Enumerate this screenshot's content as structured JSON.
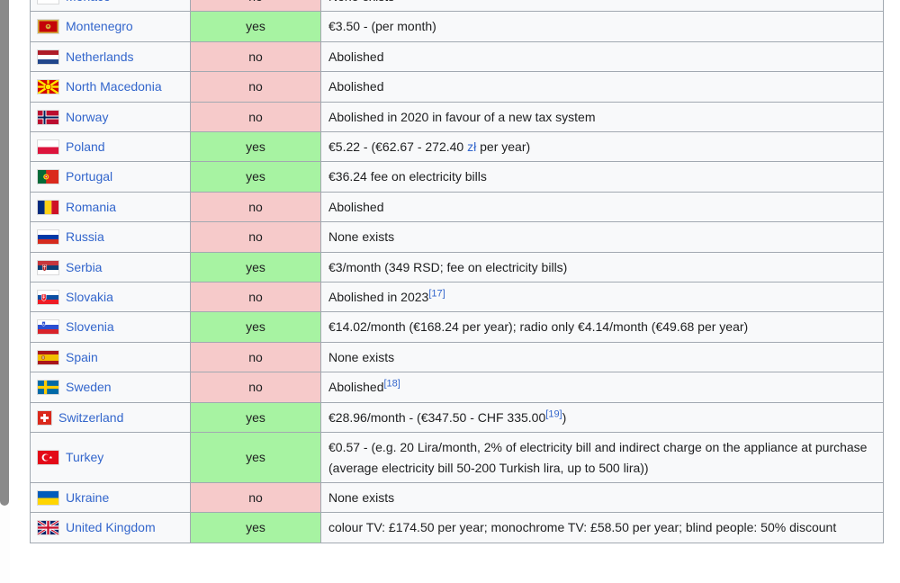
{
  "colors": {
    "link": "#3366cc",
    "text": "#202122",
    "border": "#a2a9b1",
    "cell_bg": "#f8f9fa",
    "yes_bg": "#a7f3a2",
    "no_bg": "#f6caca",
    "scrollbar_thumb": "#8a8a8a"
  },
  "table": {
    "rows": [
      {
        "country": "Monaco",
        "flag": "monaco",
        "status": "no",
        "fee": [
          {
            "type": "text",
            "text": "None exists"
          }
        ]
      },
      {
        "country": "Montenegro",
        "flag": "montenegro",
        "status": "yes",
        "fee": [
          {
            "type": "text",
            "text": "€3.50 - (per month)"
          }
        ]
      },
      {
        "country": "Netherlands",
        "flag": "netherlands",
        "status": "no",
        "fee": [
          {
            "type": "text",
            "text": "Abolished"
          }
        ]
      },
      {
        "country": "North Macedonia",
        "flag": "north-macedonia",
        "status": "no",
        "fee": [
          {
            "type": "text",
            "text": "Abolished"
          }
        ]
      },
      {
        "country": "Norway",
        "flag": "norway",
        "status": "no",
        "fee": [
          {
            "type": "text",
            "text": "Abolished in 2020 in favour of a new tax system"
          }
        ]
      },
      {
        "country": "Poland",
        "flag": "poland",
        "status": "yes",
        "fee": [
          {
            "type": "text",
            "text": "€5.22 - (€62.67 - 272.40 "
          },
          {
            "type": "link",
            "text": "zł"
          },
          {
            "type": "text",
            "text": " per year)"
          }
        ]
      },
      {
        "country": "Portugal",
        "flag": "portugal",
        "status": "yes",
        "fee": [
          {
            "type": "text",
            "text": "€36.24 fee on electricity bills"
          }
        ]
      },
      {
        "country": "Romania",
        "flag": "romania",
        "status": "no",
        "fee": [
          {
            "type": "text",
            "text": "Abolished"
          }
        ]
      },
      {
        "country": "Russia",
        "flag": "russia",
        "status": "no",
        "fee": [
          {
            "type": "text",
            "text": "None exists"
          }
        ]
      },
      {
        "country": "Serbia",
        "flag": "serbia",
        "status": "yes",
        "fee": [
          {
            "type": "text",
            "text": "€3/month (349 RSD; fee on electricity bills)"
          }
        ]
      },
      {
        "country": "Slovakia",
        "flag": "slovakia",
        "status": "no",
        "fee": [
          {
            "type": "text",
            "text": "Abolished in 2023"
          },
          {
            "type": "ref",
            "text": "[17]"
          }
        ]
      },
      {
        "country": "Slovenia",
        "flag": "slovenia",
        "status": "yes",
        "fee": [
          {
            "type": "text",
            "text": "€14.02/month (€168.24 per year); radio only €4.14/month (€49.68 per year)"
          }
        ]
      },
      {
        "country": "Spain",
        "flag": "spain",
        "status": "no",
        "fee": [
          {
            "type": "text",
            "text": "None exists"
          }
        ]
      },
      {
        "country": "Sweden",
        "flag": "sweden",
        "status": "no",
        "fee": [
          {
            "type": "text",
            "text": "Abolished"
          },
          {
            "type": "ref",
            "text": "[18]"
          }
        ]
      },
      {
        "country": "Switzerland",
        "flag": "switzerland",
        "status": "yes",
        "fee": [
          {
            "type": "text",
            "text": "€28.96/month - (€347.50 - CHF 335.00"
          },
          {
            "type": "ref",
            "text": "[19]"
          },
          {
            "type": "text",
            "text": ")"
          }
        ]
      },
      {
        "country": "Turkey",
        "flag": "turkey",
        "status": "yes",
        "fee": [
          {
            "type": "text",
            "text": "€0.57 - (e.g. 20 Lira/month, 2% of electricity bill and indirect charge on the appliance at purchase (average electricity bill 50-200 Turkish lira, up to 500 lira))"
          }
        ]
      },
      {
        "country": "Ukraine",
        "flag": "ukraine",
        "status": "no",
        "fee": [
          {
            "type": "text",
            "text": "None exists"
          }
        ]
      },
      {
        "country": "United Kingdom",
        "flag": "united-kingdom",
        "status": "yes",
        "fee": [
          {
            "type": "text",
            "text": "colour TV: £174.50 per year; monochrome TV: £58.50 per year; blind people: 50% discount"
          }
        ]
      }
    ]
  }
}
